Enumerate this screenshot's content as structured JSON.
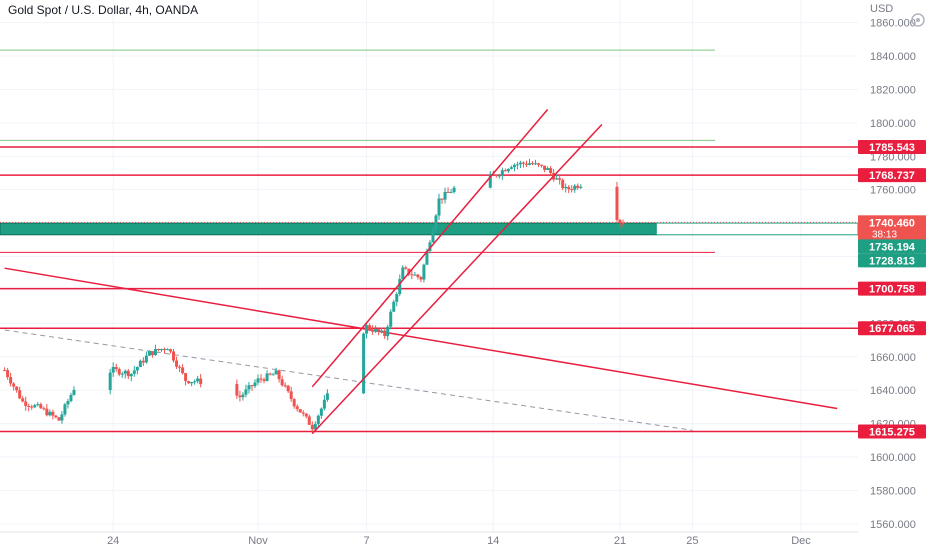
{
  "chart_title": "Gold Spot / U.S. Dollar, 4h, OANDA",
  "currency": "USD",
  "colors": {
    "bull": "#26a69a",
    "bear": "#ef5350",
    "line_red": "#e91e3f",
    "line_green": "#81c784",
    "zone_green": "#1e9e83",
    "axis_text": "#787b86",
    "label_red": "#e91e3f",
    "label_green": "#1e9e83"
  },
  "chart_data": {
    "type": "candlestick",
    "title": "Gold Spot / U.S. Dollar, 4h, OANDA",
    "ylim": [
      1550,
      1872
    ],
    "y_ticks": [
      1560,
      1580,
      1600,
      1620,
      1640,
      1660,
      1680,
      1700,
      1720,
      1740,
      1760,
      1780,
      1800,
      1820,
      1840,
      1860
    ],
    "y_tick_labels": [
      "1560.000",
      "1580.000",
      "1600.000",
      "1620.000",
      "1640.000",
      "1660.000",
      "1680.000",
      "1700.000",
      "1720.000",
      "1740.000",
      "1760.000",
      "1780.000",
      "1800.000",
      "1820.000",
      "1840.000",
      "1860.000"
    ],
    "x_range": [
      "2022-10-18",
      "2022-12-03"
    ],
    "x_ticks": [
      {
        "label": "24",
        "date": "2022-10-24"
      },
      {
        "label": "Nov",
        "date": "2022-11-01"
      },
      {
        "label": "7",
        "date": "2022-11-07"
      },
      {
        "label": "14",
        "date": "2022-11-14"
      },
      {
        "label": "21",
        "date": "2022-11-21"
      },
      {
        "label": "25",
        "date": "2022-11-25"
      },
      {
        "label": "Dec",
        "date": "2022-12-01"
      }
    ],
    "close_path": [
      [
        "2022-10-18",
        1652
      ],
      [
        "2022-10-19",
        1633
      ],
      [
        "2022-10-20",
        1629
      ],
      [
        "2022-10-21",
        1622
      ],
      [
        "2022-10-22",
        1645
      ],
      [
        "2022-10-24",
        1652
      ],
      [
        "2022-10-25",
        1650
      ],
      [
        "2022-10-26",
        1662
      ],
      [
        "2022-10-27",
        1666
      ],
      [
        "2022-10-28",
        1646
      ],
      [
        "2022-10-29",
        1645
      ],
      [
        "2022-10-31",
        1636
      ],
      [
        "2022-11-01",
        1646
      ],
      [
        "2022-11-02",
        1650
      ],
      [
        "2022-11-03",
        1632
      ],
      [
        "2022-11-04",
        1618
      ],
      [
        "2022-11-05",
        1640
      ],
      [
        "2022-11-06",
        1663
      ],
      [
        "2022-11-07",
        1678
      ],
      [
        "2022-11-08",
        1673
      ],
      [
        "2022-11-09",
        1712
      ],
      [
        "2022-11-10",
        1707
      ],
      [
        "2022-11-11",
        1754
      ],
      [
        "2022-11-12",
        1762
      ],
      [
        "2022-11-14",
        1768
      ],
      [
        "2022-11-15",
        1775
      ],
      [
        "2022-11-16",
        1776
      ],
      [
        "2022-11-17",
        1772
      ],
      [
        "2022-11-18",
        1760
      ],
      [
        "2022-11-19",
        1764
      ],
      [
        "2022-11-20",
        1758
      ],
      [
        "2022-11-21",
        1741
      ]
    ],
    "levels": [
      {
        "value": 1785.543,
        "label": "1785.543",
        "kind": "red"
      },
      {
        "value": 1768.737,
        "label": "1768.737",
        "kind": "red"
      },
      {
        "value": 1700.758,
        "label": "1700.758",
        "kind": "red"
      },
      {
        "value": 1677.065,
        "label": "1677.065",
        "kind": "red"
      },
      {
        "value": 1615.275,
        "label": "1615.275",
        "kind": "red"
      },
      {
        "value": 1843.5,
        "kind": "green"
      },
      {
        "value": 1789.5,
        "kind": "green"
      },
      {
        "value": 1722.5,
        "kind": "red-short"
      }
    ],
    "zone": {
      "from": 1733,
      "to": 1740,
      "end_date": "2022-11-23"
    },
    "current_price": {
      "value": 1740.46,
      "label": "1740.460",
      "countdown": "38:13"
    },
    "zone_labels": [
      {
        "value": 1736.194,
        "label": "1736.194"
      },
      {
        "value": 1728.813,
        "label": "1728.813"
      }
    ],
    "channel": {
      "upper": [
        [
          "2022-11-04",
          1642
        ],
        [
          "2022-11-17",
          1808
        ]
      ],
      "lower": [
        [
          "2022-11-04",
          1614
        ],
        [
          "2022-11-20",
          1799
        ]
      ]
    },
    "trendline_red": [
      [
        "2022-10-18",
        1713
      ],
      [
        "2022-12-03",
        1629
      ]
    ],
    "trendline_dashed": [
      [
        "2022-10-18",
        1676
      ],
      [
        "2022-11-25",
        1616
      ]
    ]
  }
}
